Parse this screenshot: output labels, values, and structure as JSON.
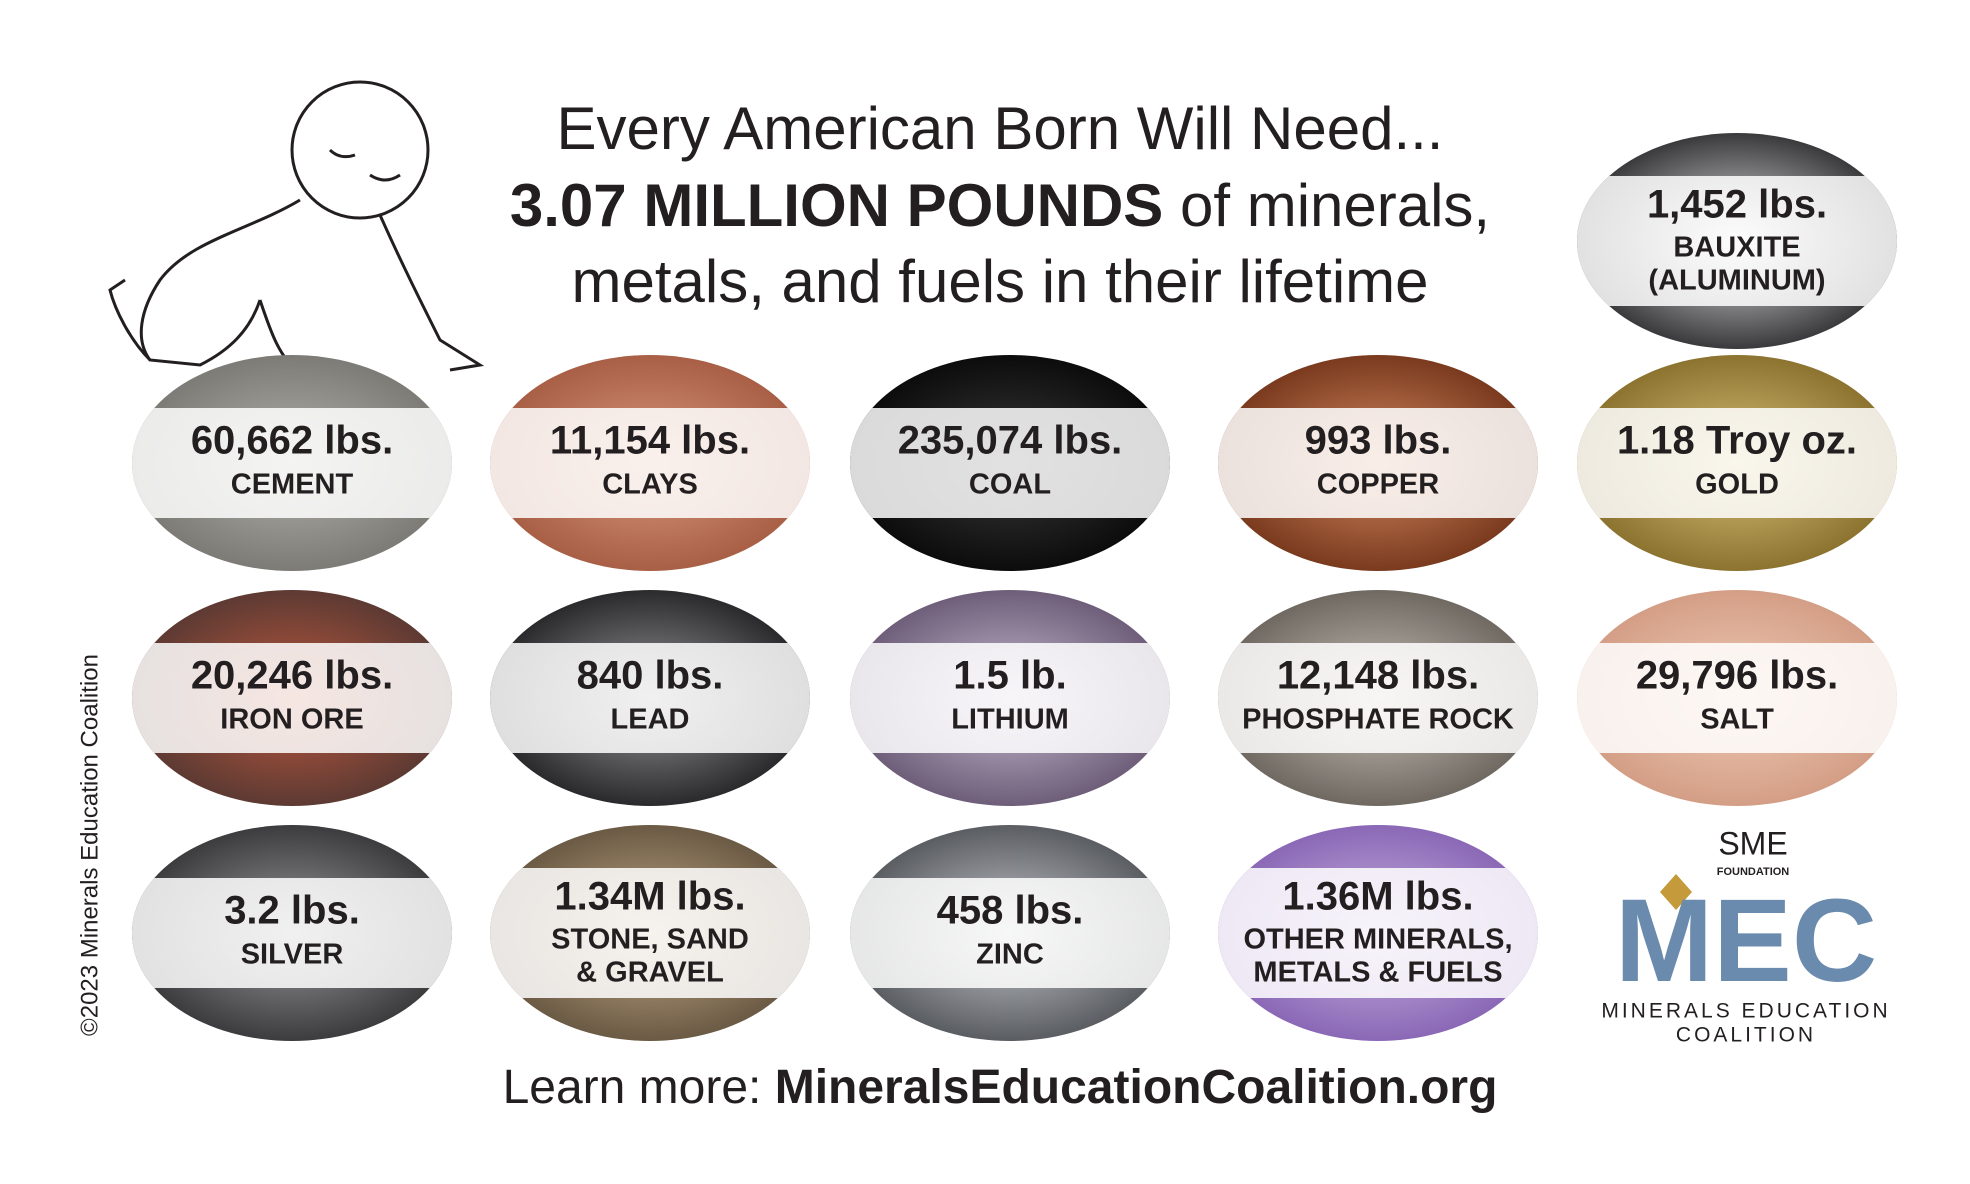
{
  "header": {
    "line1": "Every American Born Will Need...",
    "line2_bold": "3.07 MILLION POUNDS",
    "line2_rest": " of minerals,",
    "line3": "metals, and fuels in their lifetime"
  },
  "items": [
    {
      "amount": "1,452 lbs.",
      "name": [
        "BAUXITE",
        "(ALUMINUM)"
      ]
    },
    {
      "amount": "60,662 lbs.",
      "name": [
        "CEMENT"
      ]
    },
    {
      "amount": "11,154 lbs.",
      "name": [
        "CLAYS"
      ]
    },
    {
      "amount": "235,074 lbs.",
      "name": [
        "COAL"
      ]
    },
    {
      "amount": "993 lbs.",
      "name": [
        "COPPER"
      ]
    },
    {
      "amount": "1.18 Troy oz.",
      "name": [
        "GOLD"
      ]
    },
    {
      "amount": "20,246 lbs.",
      "name": [
        "IRON ORE"
      ]
    },
    {
      "amount": "840 lbs.",
      "name": [
        "LEAD"
      ]
    },
    {
      "amount": "1.5 lb.",
      "name": [
        "LITHIUM"
      ]
    },
    {
      "amount": "12,148 lbs.",
      "name": [
        "PHOSPHATE ROCK"
      ]
    },
    {
      "amount": "29,796 lbs.",
      "name": [
        "SALT"
      ]
    },
    {
      "amount": "3.2 lbs.",
      "name": [
        "SILVER"
      ]
    },
    {
      "amount": "1.34M lbs.",
      "name": [
        "STONE, SAND",
        "& GRAVEL"
      ]
    },
    {
      "amount": "458 lbs.",
      "name": [
        "ZINC"
      ]
    },
    {
      "amount": "1.36M lbs.",
      "name": [
        "OTHER MINERALS,",
        "METALS & FUELS"
      ]
    }
  ],
  "footer": {
    "prefix": "Learn more: ",
    "url": "MineralsEducationCoalition.org"
  },
  "copyright": "©2023 Minerals Education Coalition",
  "logo": {
    "sme": "SME",
    "foundation": "FOUNDATION",
    "mec": "MEC",
    "line1": "MINERALS EDUCATION",
    "line2": "COALITION"
  }
}
